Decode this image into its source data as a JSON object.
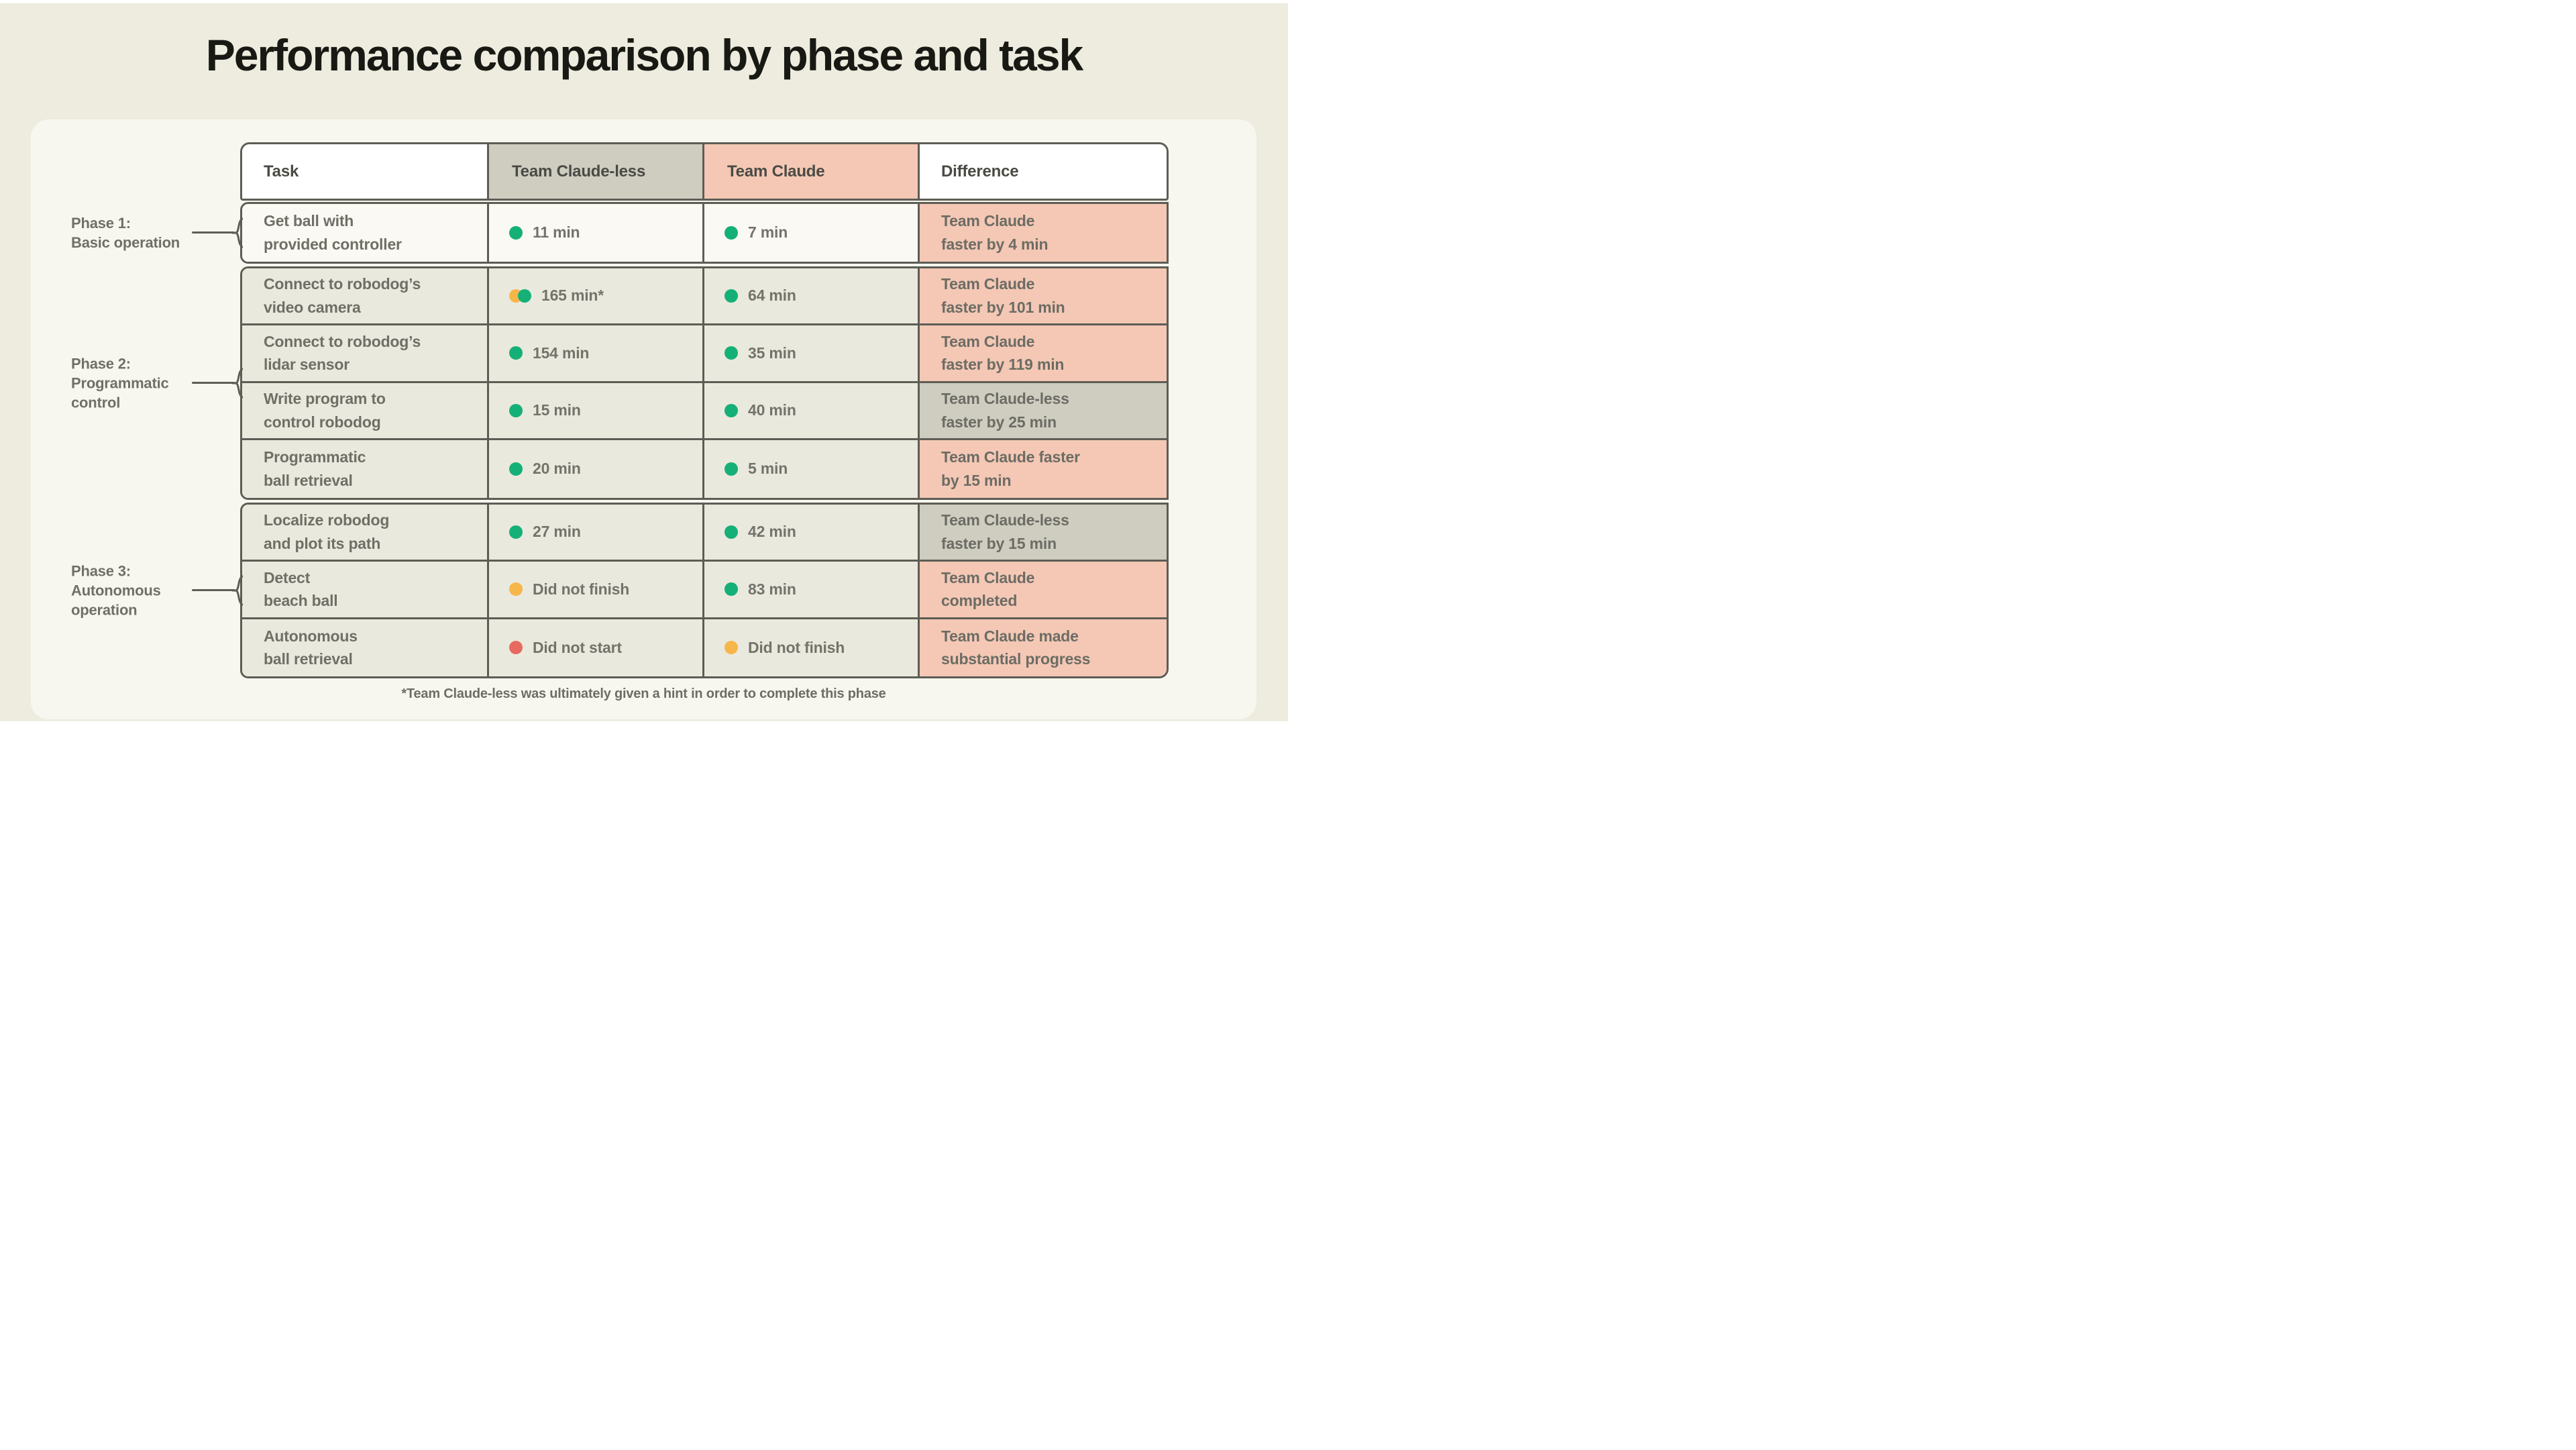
{
  "chart_data": {
    "type": "table",
    "title": "Performance comparison by phase and task",
    "headers": [
      "Task",
      "Team Claude-less",
      "Team Claude",
      "Difference"
    ],
    "footnote": "*Team Claude-less was ultimately given a hint in order to complete this phase",
    "status_legend": {
      "green": "completed",
      "orange": "did not finish",
      "red": "did not start"
    },
    "phases": [
      {
        "label_lines": [
          "Phase 1:",
          "Basic operation"
        ],
        "rows": [
          {
            "task_lines": [
              "Get ball with",
              "provided controller"
            ],
            "claudeless": {
              "dots": [
                "green"
              ],
              "text": "11 min"
            },
            "claude": {
              "dots": [
                "green"
              ],
              "text": "7 min"
            },
            "diff": {
              "lines": [
                "Team Claude",
                "faster by 4 min"
              ],
              "tone": "pink"
            }
          }
        ]
      },
      {
        "label_lines": [
          "Phase 2:",
          "Programmatic",
          "control"
        ],
        "rows": [
          {
            "task_lines": [
              "Connect to robodog’s",
              "video camera"
            ],
            "claudeless": {
              "dots": [
                "orange",
                "green"
              ],
              "text": "165 min*"
            },
            "claude": {
              "dots": [
                "green"
              ],
              "text": "64 min"
            },
            "diff": {
              "lines": [
                "Team Claude",
                "faster by 101 min"
              ],
              "tone": "pink"
            }
          },
          {
            "task_lines": [
              "Connect to robodog’s",
              "lidar sensor"
            ],
            "claudeless": {
              "dots": [
                "green"
              ],
              "text": "154 min"
            },
            "claude": {
              "dots": [
                "green"
              ],
              "text": "35 min"
            },
            "diff": {
              "lines": [
                "Team Claude",
                "faster by 119 min"
              ],
              "tone": "pink"
            }
          },
          {
            "task_lines": [
              "Write program to",
              "control robodog"
            ],
            "claudeless": {
              "dots": [
                "green"
              ],
              "text": "15 min"
            },
            "claude": {
              "dots": [
                "green"
              ],
              "text": "40 min"
            },
            "diff": {
              "lines": [
                "Team Claude-less",
                "faster by 25 min"
              ],
              "tone": "gray"
            }
          },
          {
            "task_lines": [
              "Programmatic",
              "ball retrieval"
            ],
            "claudeless": {
              "dots": [
                "green"
              ],
              "text": "20 min"
            },
            "claude": {
              "dots": [
                "green"
              ],
              "text": "5 min"
            },
            "diff": {
              "lines": [
                "Team Claude faster",
                "by 15 min"
              ],
              "tone": "pink"
            }
          }
        ]
      },
      {
        "label_lines": [
          "Phase 3:",
          "Autonomous",
          "operation"
        ],
        "rows": [
          {
            "task_lines": [
              "Localize robodog",
              "and plot its path"
            ],
            "claudeless": {
              "dots": [
                "green"
              ],
              "text": "27 min"
            },
            "claude": {
              "dots": [
                "green"
              ],
              "text": "42 min"
            },
            "diff": {
              "lines": [
                "Team Claude-less",
                "faster by 15 min"
              ],
              "tone": "gray"
            }
          },
          {
            "task_lines": [
              "Detect",
              "beach ball"
            ],
            "claudeless": {
              "dots": [
                "orange"
              ],
              "text": "Did not finish"
            },
            "claude": {
              "dots": [
                "green"
              ],
              "text": "83 min"
            },
            "diff": {
              "lines": [
                "Team Claude",
                "completed"
              ],
              "tone": "pink"
            }
          },
          {
            "task_lines": [
              "Autonomous",
              "ball retrieval"
            ],
            "claudeless": {
              "dots": [
                "red"
              ],
              "text": "Did not start"
            },
            "claude": {
              "dots": [
                "orange"
              ],
              "text": "Did not finish"
            },
            "diff": {
              "lines": [
                "Team Claude made",
                "substantial progress"
              ],
              "tone": "pink"
            }
          }
        ]
      }
    ],
    "colors": {
      "green": "#15b077",
      "orange": "#f7b64a",
      "red": "#e76a60",
      "pink": "#f4c8b5",
      "gray": "#cecdc0",
      "border": "#5d5d55",
      "page": "#edecdf",
      "card": "#f8f7ef"
    }
  }
}
